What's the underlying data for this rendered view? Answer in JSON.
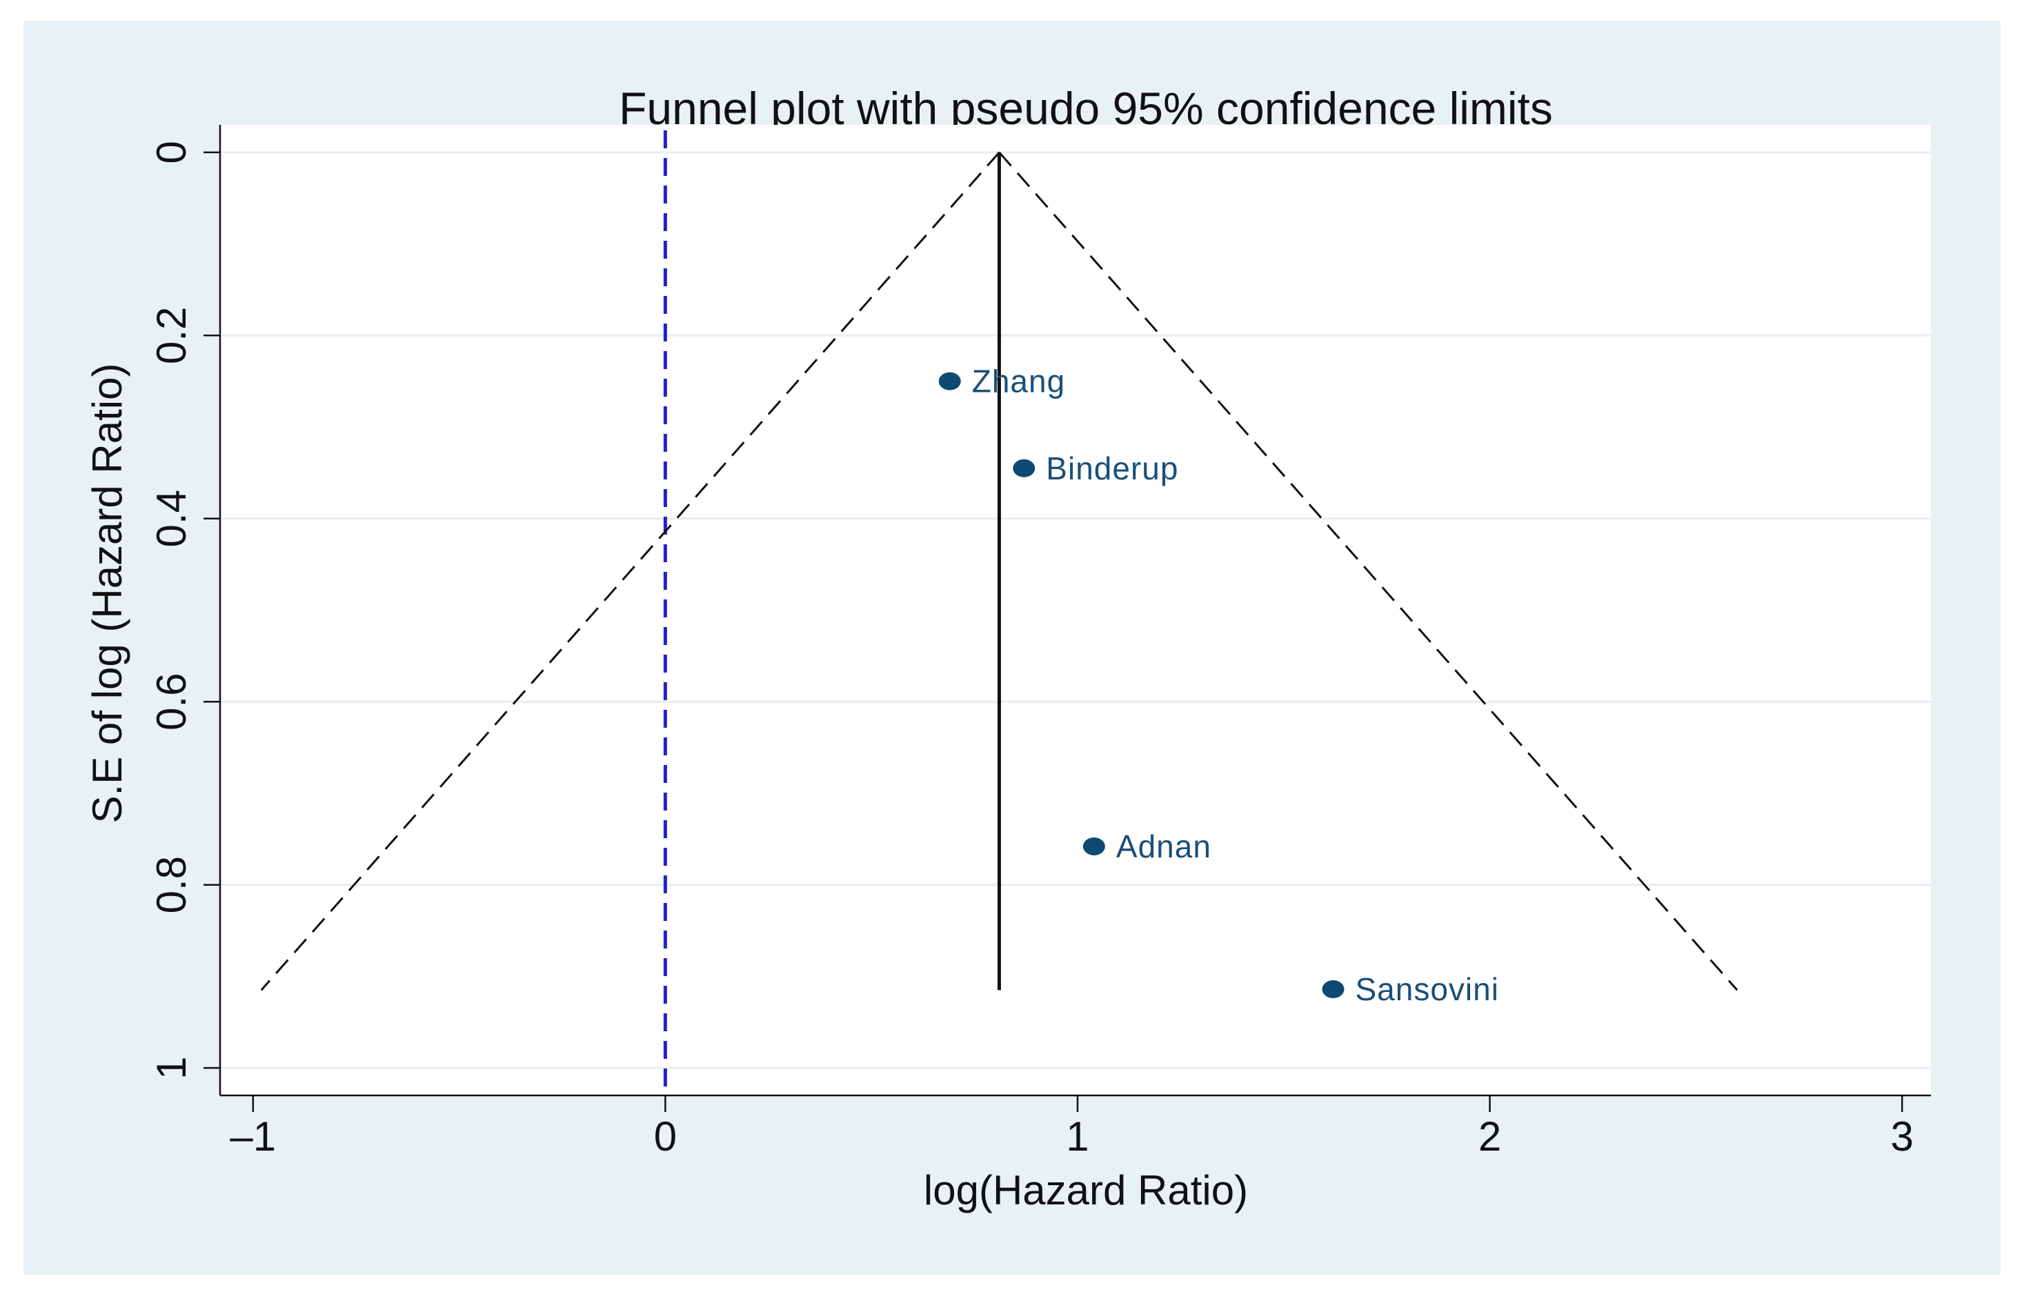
{
  "chart_data": {
    "type": "scatter",
    "title": "Funnel plot with pseudo 95% confidence limits",
    "xlabel": "log(Hazard Ratio)",
    "ylabel": "S.E of log (Hazard Ratio)",
    "xlim": [
      -1.08,
      3.07
    ],
    "ylim": [
      -0.03,
      1.03
    ],
    "y_inverted": true,
    "x_ticks": [
      -1,
      0,
      1,
      2,
      3
    ],
    "x_tick_labels": [
      "–1",
      "0",
      "1",
      "2",
      "3"
    ],
    "y_ticks": [
      0,
      0.2,
      0.4,
      0.6,
      0.8,
      1
    ],
    "y_tick_labels": [
      "0",
      "0.2",
      "0.4",
      "0.6",
      "0.8",
      "1"
    ],
    "grid": "horizontal",
    "null_line": {
      "x": 0,
      "style": "dashed",
      "color": "#1f24c8"
    },
    "pooled_estimate": {
      "x": 0.81,
      "y_top": 0,
      "y_bottom": 0.915
    },
    "pseudo_ci": {
      "apex": [
        0.81,
        0
      ],
      "left_end": [
        -0.98,
        0.915
      ],
      "right_end": [
        2.6,
        0.915
      ],
      "style": "dashed"
    },
    "series": [
      {
        "name": "studies",
        "color": "#0d4a73",
        "points": [
          {
            "label": "Zhang",
            "x": 0.69,
            "y": 0.25
          },
          {
            "label": "Binderup",
            "x": 0.87,
            "y": 0.345
          },
          {
            "label": "Adnan",
            "x": 1.04,
            "y": 0.758
          },
          {
            "label": "Sansovini",
            "x": 1.62,
            "y": 0.914
          }
        ]
      }
    ]
  }
}
